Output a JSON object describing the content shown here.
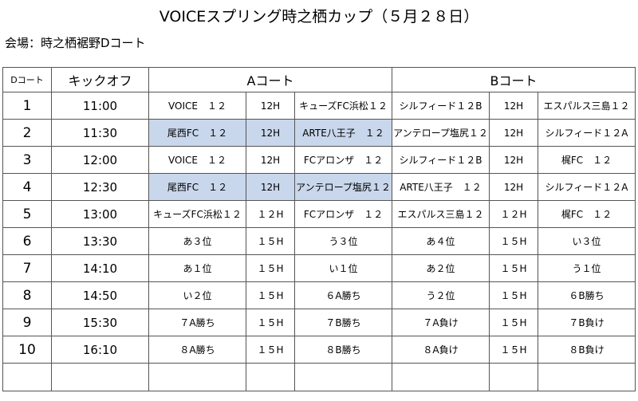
{
  "title": "VOICEスプリング時之栖カップ（５月２８日）",
  "venue": "会場：時之栖裾野Dコート",
  "table": {
    "headers": {
      "court": "Dコート",
      "kickoff": "キックオフ",
      "a_court": "Aコート",
      "b_court": "Bコート"
    },
    "rows": [
      {
        "num": "1",
        "time": "11:00",
        "a_home": "VOICE　１２",
        "a_cat": "12H",
        "a_away": "キューズFC浜松１２",
        "b_home": "シルフィード１２B",
        "b_cat": "12H",
        "b_away": "エスパルス三島１２",
        "highlight": false
      },
      {
        "num": "2",
        "time": "11:30",
        "a_home": "尾西FC　１２",
        "a_cat": "12H",
        "a_away": "ARTE八王子　１２",
        "b_home": "アンテロープ塩尻１２",
        "b_cat": "12H",
        "b_away": "シルフィード１２A",
        "highlight": true
      },
      {
        "num": "3",
        "time": "12:00",
        "a_home": "VOICE　１２",
        "a_cat": "12H",
        "a_away": "FCアロンザ　１２",
        "b_home": "シルフィード１２B",
        "b_cat": "12H",
        "b_away": "梶FC　１２",
        "highlight": false
      },
      {
        "num": "4",
        "time": "12:30",
        "a_home": "尾西FC　１２",
        "a_cat": "12H",
        "a_away": "アンテロープ塩尻１２",
        "b_home": "ARTE八王子　１２",
        "b_cat": "12H",
        "b_away": "シルフィード１２A",
        "highlight": true
      },
      {
        "num": "5",
        "time": "13:00",
        "a_home": "キューズFC浜松１２",
        "a_cat": "１２H",
        "a_away": "FCアロンザ　１２",
        "b_home": "エスパルス三島１２",
        "b_cat": "１２H",
        "b_away": "梶FC　１２",
        "highlight": false
      },
      {
        "num": "6",
        "time": "13:30",
        "a_home": "あ３位",
        "a_cat": "１５H",
        "a_away": "う３位",
        "b_home": "あ４位",
        "b_cat": "１５H",
        "b_away": "い３位",
        "highlight": false
      },
      {
        "num": "7",
        "time": "14:10",
        "a_home": "あ１位",
        "a_cat": "１５H",
        "a_away": "い１位",
        "b_home": "あ２位",
        "b_cat": "１５H",
        "b_away": "う１位",
        "highlight": false
      },
      {
        "num": "8",
        "time": "14:50",
        "a_home": "い２位",
        "a_cat": "１５H",
        "a_away": "６A勝ち",
        "b_home": "う２位",
        "b_cat": "１５H",
        "b_away": "６B勝ち",
        "highlight": false
      },
      {
        "num": "9",
        "time": "15:30",
        "a_home": "７A勝ち",
        "a_cat": "１５H",
        "a_away": "７B勝ち",
        "b_home": "７A負け",
        "b_cat": "１５H",
        "b_away": "７B負け",
        "highlight": false
      },
      {
        "num": "10",
        "time": "16:10",
        "a_home": "８A勝ち",
        "a_cat": "１５H",
        "a_away": "８B勝ち",
        "b_home": "８A負け",
        "b_cat": "１５H",
        "b_away": "８B負け",
        "highlight": false
      }
    ]
  }
}
